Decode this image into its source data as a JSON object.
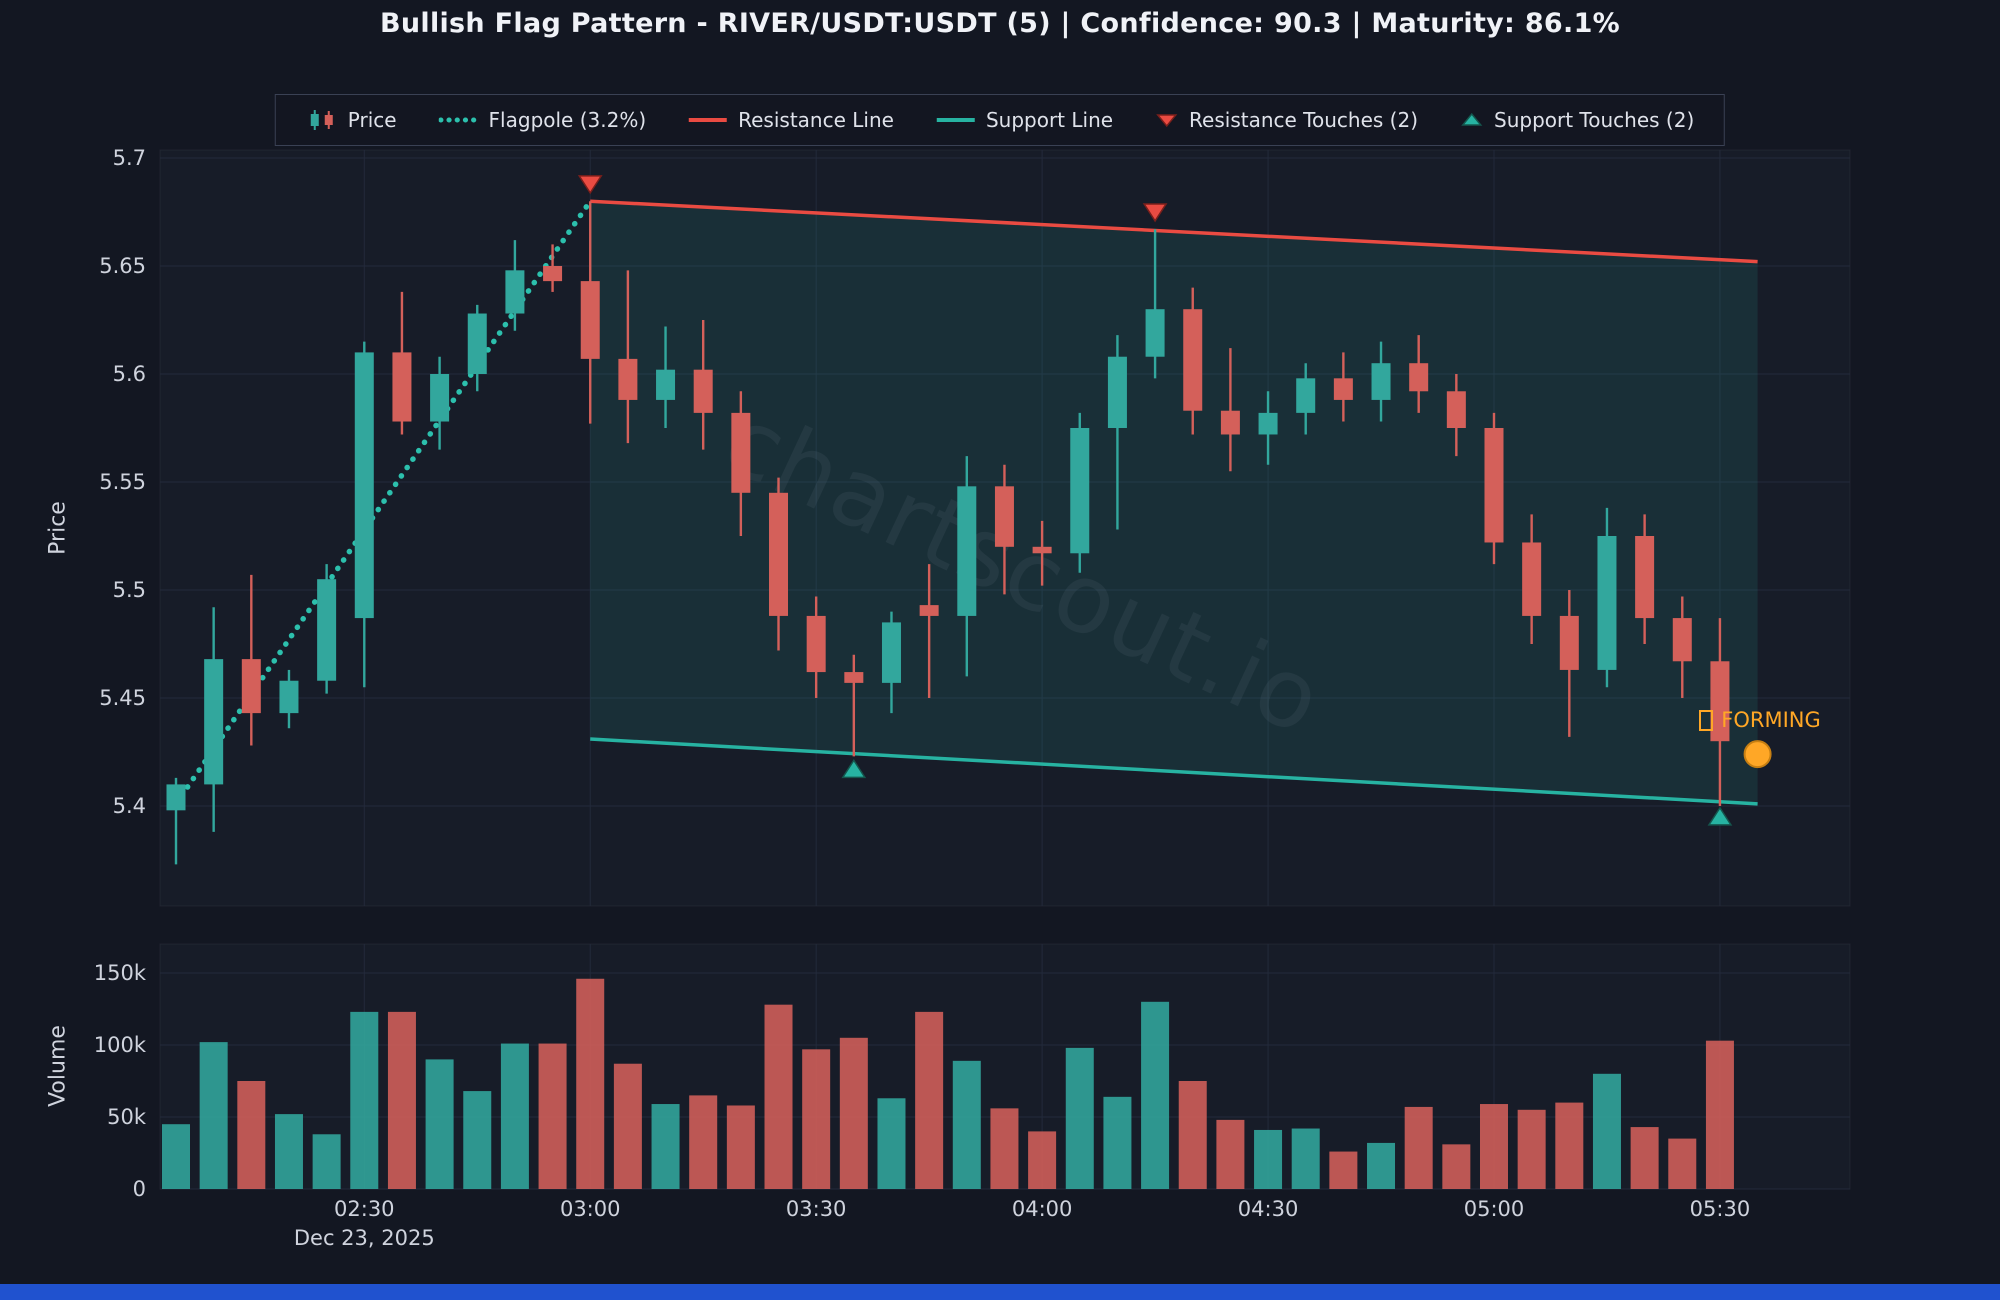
{
  "title": "Bullish Flag Pattern - RIVER/USDT:USDT (5) | Confidence: 90.3 | Maturity: 86.1%",
  "legend": {
    "items": [
      {
        "label": "Price",
        "icon": "candlestick"
      },
      {
        "label": "Flagpole (3.2%)",
        "icon": "dotted-line"
      },
      {
        "label": "Resistance Line",
        "icon": "red-line"
      },
      {
        "label": "Support Line",
        "icon": "teal-line"
      },
      {
        "label": "Resistance Touches (2)",
        "icon": "down-triangle"
      },
      {
        "label": "Support Touches (2)",
        "icon": "up-triangle"
      }
    ]
  },
  "annotations": {
    "forming": "FORMING",
    "watermark": "chartscout.io",
    "date": "Dec 23, 2025"
  },
  "colors": {
    "background": "#131722",
    "plot_background": "#171c28",
    "grid": "#232a3b",
    "text": "#cfd3dd",
    "up": "#32a79d",
    "down": "#d4605a",
    "resistance": "#ea4b42",
    "support": "#27b3a2",
    "flagpole": "#2cc0ad",
    "forming": "#ffa726",
    "channel_fill": "rgba(42,179,162,0.13)",
    "watermark": "rgba(185,195,215,0.07)",
    "bottom_bar": "#2052cf"
  },
  "chart_data": {
    "type": "candlestick",
    "pattern": "Bullish Flag Pattern",
    "symbol": "RIVER/USDT:USDT",
    "interval_minutes": 5,
    "confidence": 90.3,
    "maturity_pct": 86.1,
    "price_axis": {
      "label": "Price",
      "tick_values": [
        5.7,
        5.65,
        5.6,
        5.55,
        5.5,
        5.45,
        5.4
      ],
      "tick_labels": [
        "5.7",
        "5.65",
        "5.6",
        "5.55",
        "5.5",
        "5.45",
        "5.4"
      ],
      "range": [
        5.355,
        5.705
      ]
    },
    "volume_axis": {
      "label": "Volume",
      "tick_values": [
        0,
        50000,
        100000,
        150000
      ],
      "tick_labels": [
        "0",
        "50k",
        "100k",
        "150k"
      ],
      "range": [
        0,
        170000
      ]
    },
    "x_ticks": [
      "02:30",
      "03:00",
      "03:30",
      "04:00",
      "04:30",
      "05:00",
      "05:30"
    ],
    "candle_columns": [
      "time",
      "open",
      "high",
      "low",
      "close",
      "volume"
    ],
    "candles": [
      [
        "02:05",
        5.398,
        5.413,
        5.373,
        5.41,
        45000
      ],
      [
        "02:10",
        5.41,
        5.492,
        5.388,
        5.468,
        102000
      ],
      [
        "02:15",
        5.468,
        5.507,
        5.428,
        5.443,
        75000
      ],
      [
        "02:20",
        5.443,
        5.463,
        5.436,
        5.458,
        52000
      ],
      [
        "02:25",
        5.458,
        5.512,
        5.452,
        5.505,
        38000
      ],
      [
        "02:30",
        5.487,
        5.615,
        5.455,
        5.61,
        123000
      ],
      [
        "02:35",
        5.61,
        5.638,
        5.572,
        5.578,
        123000
      ],
      [
        "02:40",
        5.578,
        5.608,
        5.565,
        5.6,
        90000
      ],
      [
        "02:45",
        5.6,
        5.632,
        5.592,
        5.628,
        68000
      ],
      [
        "02:50",
        5.628,
        5.662,
        5.62,
        5.648,
        101000
      ],
      [
        "02:55",
        5.65,
        5.66,
        5.638,
        5.643,
        101000
      ],
      [
        "03:00",
        5.643,
        5.68,
        5.577,
        5.607,
        146000
      ],
      [
        "03:05",
        5.607,
        5.648,
        5.568,
        5.588,
        87000
      ],
      [
        "03:10",
        5.588,
        5.622,
        5.575,
        5.602,
        59000
      ],
      [
        "03:15",
        5.602,
        5.625,
        5.565,
        5.582,
        65000
      ],
      [
        "03:20",
        5.582,
        5.592,
        5.525,
        5.545,
        58000
      ],
      [
        "03:25",
        5.545,
        5.552,
        5.472,
        5.488,
        128000
      ],
      [
        "03:30",
        5.488,
        5.497,
        5.45,
        5.462,
        97000
      ],
      [
        "03:35",
        5.462,
        5.47,
        5.423,
        5.457,
        105000
      ],
      [
        "03:40",
        5.457,
        5.49,
        5.443,
        5.485,
        63000
      ],
      [
        "03:45",
        5.493,
        5.512,
        5.45,
        5.488,
        123000
      ],
      [
        "03:50",
        5.488,
        5.562,
        5.46,
        5.548,
        89000
      ],
      [
        "03:55",
        5.548,
        5.558,
        5.498,
        5.52,
        56000
      ],
      [
        "04:00",
        5.52,
        5.532,
        5.502,
        5.517,
        40000
      ],
      [
        "04:05",
        5.517,
        5.582,
        5.508,
        5.575,
        98000
      ],
      [
        "04:10",
        5.575,
        5.618,
        5.528,
        5.608,
        64000
      ],
      [
        "04:15",
        5.608,
        5.667,
        5.598,
        5.63,
        130000
      ],
      [
        "04:20",
        5.63,
        5.64,
        5.572,
        5.583,
        75000
      ],
      [
        "04:25",
        5.583,
        5.612,
        5.555,
        5.572,
        48000
      ],
      [
        "04:30",
        5.572,
        5.592,
        5.558,
        5.582,
        41000
      ],
      [
        "04:35",
        5.582,
        5.605,
        5.572,
        5.598,
        42000
      ],
      [
        "04:40",
        5.598,
        5.61,
        5.578,
        5.588,
        26000
      ],
      [
        "04:45",
        5.588,
        5.615,
        5.578,
        5.605,
        32000
      ],
      [
        "04:50",
        5.605,
        5.618,
        5.582,
        5.592,
        57000
      ],
      [
        "04:55",
        5.592,
        5.6,
        5.562,
        5.575,
        31000
      ],
      [
        "05:00",
        5.575,
        5.582,
        5.512,
        5.522,
        59000
      ],
      [
        "05:05",
        5.522,
        5.535,
        5.475,
        5.488,
        55000
      ],
      [
        "05:10",
        5.488,
        5.5,
        5.432,
        5.463,
        60000
      ],
      [
        "05:15",
        5.463,
        5.538,
        5.455,
        5.525,
        80000
      ],
      [
        "05:20",
        5.525,
        5.535,
        5.475,
        5.487,
        43000
      ],
      [
        "05:25",
        5.487,
        5.497,
        5.45,
        5.467,
        35000
      ],
      [
        "05:30",
        5.467,
        5.487,
        5.4,
        5.43,
        103000
      ]
    ],
    "overlays": {
      "flagpole": {
        "pct": "3.2%",
        "from": {
          "time": "02:05",
          "price": 5.401
        },
        "to": {
          "time": "03:00",
          "price": 5.68
        }
      },
      "resistance_line": {
        "from": {
          "time": "03:00",
          "price": 5.68
        },
        "to": {
          "time": "05:35",
          "price": 5.652
        }
      },
      "support_line": {
        "from": {
          "time": "03:00",
          "price": 5.431
        },
        "to": {
          "time": "05:35",
          "price": 5.401
        }
      },
      "resistance_touches": [
        {
          "time": "03:00",
          "price": 5.682
        },
        {
          "time": "04:15",
          "price": 5.669
        }
      ],
      "support_touches": [
        {
          "time": "03:35",
          "price": 5.423
        },
        {
          "time": "05:30",
          "price": 5.401
        }
      ],
      "forming_marker": {
        "time": "05:35",
        "price": 5.424
      }
    }
  }
}
